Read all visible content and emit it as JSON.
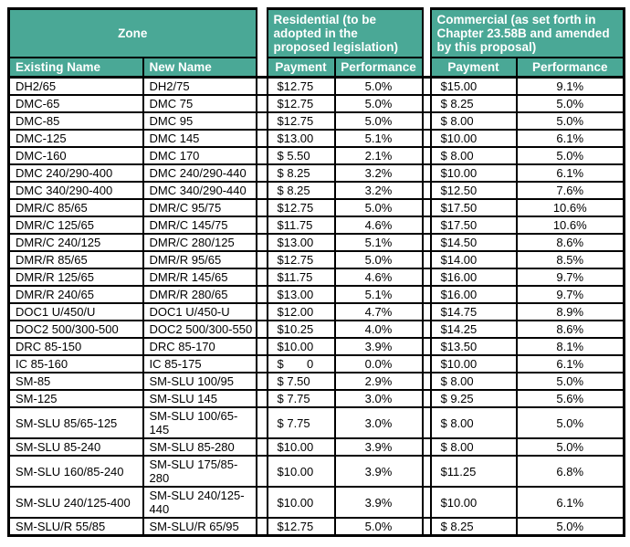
{
  "colors": {
    "header_bg": "#4AA896",
    "header_text": "#ffffff",
    "border": "#000000",
    "cell_text": "#000000",
    "page_bg": "#ffffff"
  },
  "table": {
    "group_headers": {
      "zone": "Zone",
      "residential": "Residential (to be adopted in the proposed legislation)",
      "commercial": "Commercial (as set forth in Chapter 23.58B and amended by this proposal)"
    },
    "column_headers": {
      "existing_name": "Existing Name",
      "new_name": "New Name",
      "res_payment": "Payment",
      "res_performance": "Performance",
      "com_payment": "Payment",
      "com_performance": "Performance"
    },
    "rows": [
      [
        "DH2/65",
        "DH2/75",
        "$12.75",
        "5.0%",
        "$15.00",
        "9.1%"
      ],
      [
        "DMC-65",
        "DMC 75",
        "$12.75",
        "5.0%",
        "$ 8.25",
        "5.0%"
      ],
      [
        "DMC-85",
        "DMC 95",
        "$12.75",
        "5.0%",
        "$ 8.00",
        "5.0%"
      ],
      [
        "DMC-125",
        "DMC 145",
        "$13.00",
        "5.1%",
        "$10.00",
        "6.1%"
      ],
      [
        "DMC-160",
        "DMC 170",
        "$ 5.50",
        "2.1%",
        "$ 8.00",
        "5.0%"
      ],
      [
        "DMC 240/290-400",
        "DMC 240/290-440",
        "$ 8.25",
        "3.2%",
        "$10.00",
        "6.1%"
      ],
      [
        "DMC 340/290-400",
        "DMC 340/290-440",
        "$ 8.25",
        "3.2%",
        "$12.50",
        "7.6%"
      ],
      [
        "DMR/C 85/65",
        "DMR/C 95/75",
        "$12.75",
        "5.0%",
        "$17.50",
        "10.6%"
      ],
      [
        "DMR/C 125/65",
        "DMR/C 145/75",
        "$11.75",
        "4.6%",
        "$17.50",
        "10.6%"
      ],
      [
        "DMR/C 240/125",
        "DMR/C 280/125",
        "$13.00",
        "5.1%",
        "$14.50",
        "8.6%"
      ],
      [
        "DMR/R 85/65",
        "DMR/R 95/65",
        "$12.75",
        "5.0%",
        "$14.00",
        "8.5%"
      ],
      [
        "DMR/R 125/65",
        "DMR/R 145/65",
        "$11.75",
        "4.6%",
        "$16.00",
        "9.7%"
      ],
      [
        "DMR/R 240/65",
        "DMR/R 280/65",
        "$13.00",
        "5.1%",
        "$16.00",
        "9.7%"
      ],
      [
        "DOC1 U/450/U",
        "DOC1 U/450-U",
        "$12.00",
        "4.7%",
        "$14.75",
        "8.9%"
      ],
      [
        "DOC2 500/300-500",
        "DOC2 500/300-550",
        "$10.25",
        "4.0%",
        "$14.25",
        "8.6%"
      ],
      [
        "DRC 85-150",
        "DRC 85-170",
        "$10.00",
        "3.9%",
        "$13.50",
        "8.1%"
      ],
      [
        "IC 85-160",
        "IC 85-175",
        "$       0",
        "0.0%",
        "$10.00",
        "6.1%"
      ],
      [
        "SM-85",
        "SM-SLU 100/95",
        "$ 7.50",
        "2.9%",
        "$ 8.00",
        "5.0%"
      ],
      [
        "SM-125",
        "SM-SLU 145",
        "$ 7.75",
        "3.0%",
        "$ 9.25",
        "5.6%"
      ],
      [
        "SM-SLU 85/65-125",
        "SM-SLU 100/65-145",
        "$ 7.75",
        "3.0%",
        "$ 8.00",
        "5.0%"
      ],
      [
        "SM-SLU 85-240",
        "SM-SLU 85-280",
        "$10.00",
        "3.9%",
        "$ 8.00",
        "5.0%"
      ],
      [
        "SM-SLU 160/85-240",
        "SM-SLU 175/85-280",
        "$10.00",
        "3.9%",
        "$11.25",
        "6.8%"
      ],
      [
        "SM-SLU 240/125-400",
        "SM-SLU 240/125-440",
        "$10.00",
        "3.9%",
        "$10.00",
        "6.1%"
      ],
      [
        "SM-SLU/R 55/85",
        "SM-SLU/R 65/95",
        "$12.75",
        "5.0%",
        "$ 8.25",
        "5.0%"
      ]
    ]
  }
}
